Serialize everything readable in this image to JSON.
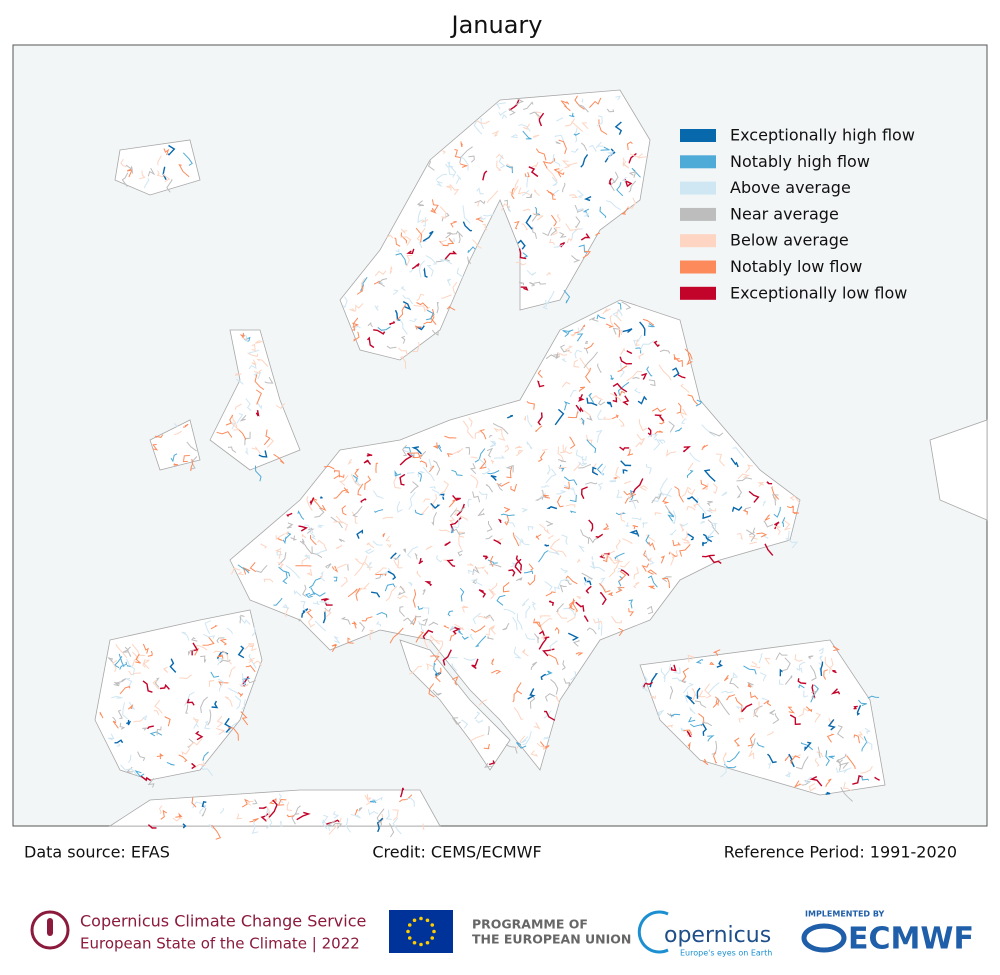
{
  "title": "January",
  "legend": [
    {
      "label": "Exceptionally high flow",
      "color": "#0868ac"
    },
    {
      "label": "Notably high flow",
      "color": "#4eaad6"
    },
    {
      "label": "Above average",
      "color": "#cfe6f3"
    },
    {
      "label": "Near average",
      "color": "#bdbdbd"
    },
    {
      "label": "Below average",
      "color": "#fdd5c2"
    },
    {
      "label": "Notably low flow",
      "color": "#fc8a5a"
    },
    {
      "label": "Exceptionally low flow",
      "color": "#c2032a"
    }
  ],
  "footer": {
    "source": "Data source: EFAS",
    "credit": "Credit: CEMS/ECMWF",
    "reference": "Reference Period: 1991-2020"
  },
  "logos": {
    "c3s_name": "Copernicus Climate Change Service",
    "c3s_sub": "European State of the Climate | 2022",
    "eu_line1": "PROGRAMME OF",
    "eu_line2": "THE EUROPEAN UNION",
    "copernicus": "opernicus",
    "copernicus_tag": "Europe's eyes on Earth",
    "implemented": "IMPLEMENTED BY",
    "ecmwf": "ECMWF"
  }
}
